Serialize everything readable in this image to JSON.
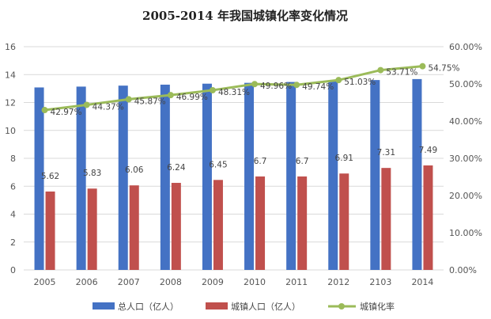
{
  "chart_data": {
    "type": "bar",
    "title": "2005-2014 年我国城镇化率变化情况",
    "categories": [
      "2005",
      "2006",
      "2007",
      "2008",
      "2009",
      "2010",
      "2011",
      "2012",
      "2103",
      "2014"
    ],
    "series": [
      {
        "name": "总人口（亿人）",
        "type": "bar",
        "axis": "left",
        "color": "#4472C4",
        "values": [
          13.08,
          13.14,
          13.21,
          13.28,
          13.35,
          13.41,
          13.47,
          13.54,
          13.61,
          13.68
        ]
      },
      {
        "name": "城镇人口（亿人）",
        "type": "bar",
        "axis": "left",
        "color": "#C0504D",
        "values": [
          5.62,
          5.83,
          6.06,
          6.24,
          6.45,
          6.7,
          6.7,
          6.91,
          7.31,
          7.49
        ],
        "data_labels": [
          "5.62",
          "5.83",
          "6.06",
          "6.24",
          "6.45",
          "6.7",
          "6.7",
          "6.91",
          "7.31",
          "7.49"
        ]
      },
      {
        "name": "城镇化率",
        "type": "line",
        "axis": "right",
        "color": "#9BBB59",
        "values": [
          42.97,
          44.37,
          45.87,
          46.99,
          48.31,
          49.96,
          49.74,
          51.03,
          53.71,
          54.75
        ],
        "data_labels": [
          "42.97%",
          "44.37%",
          "45.87%",
          "46.99%",
          "48.31%",
          "49.96%",
          "49.74%",
          "51.03%",
          "53.71%",
          "54.75%"
        ]
      }
    ],
    "y_left": {
      "ylim": [
        0,
        16
      ],
      "ticks": [
        "0",
        "2",
        "4",
        "6",
        "8",
        "10",
        "12",
        "14",
        "16"
      ]
    },
    "y_right": {
      "ylim": [
        0,
        60
      ],
      "ticks": [
        "0.00%",
        "10.00%",
        "20.00%",
        "30.00%",
        "40.00%",
        "50.00%",
        "60.00%"
      ]
    },
    "grid": true,
    "legend_position": "bottom"
  }
}
